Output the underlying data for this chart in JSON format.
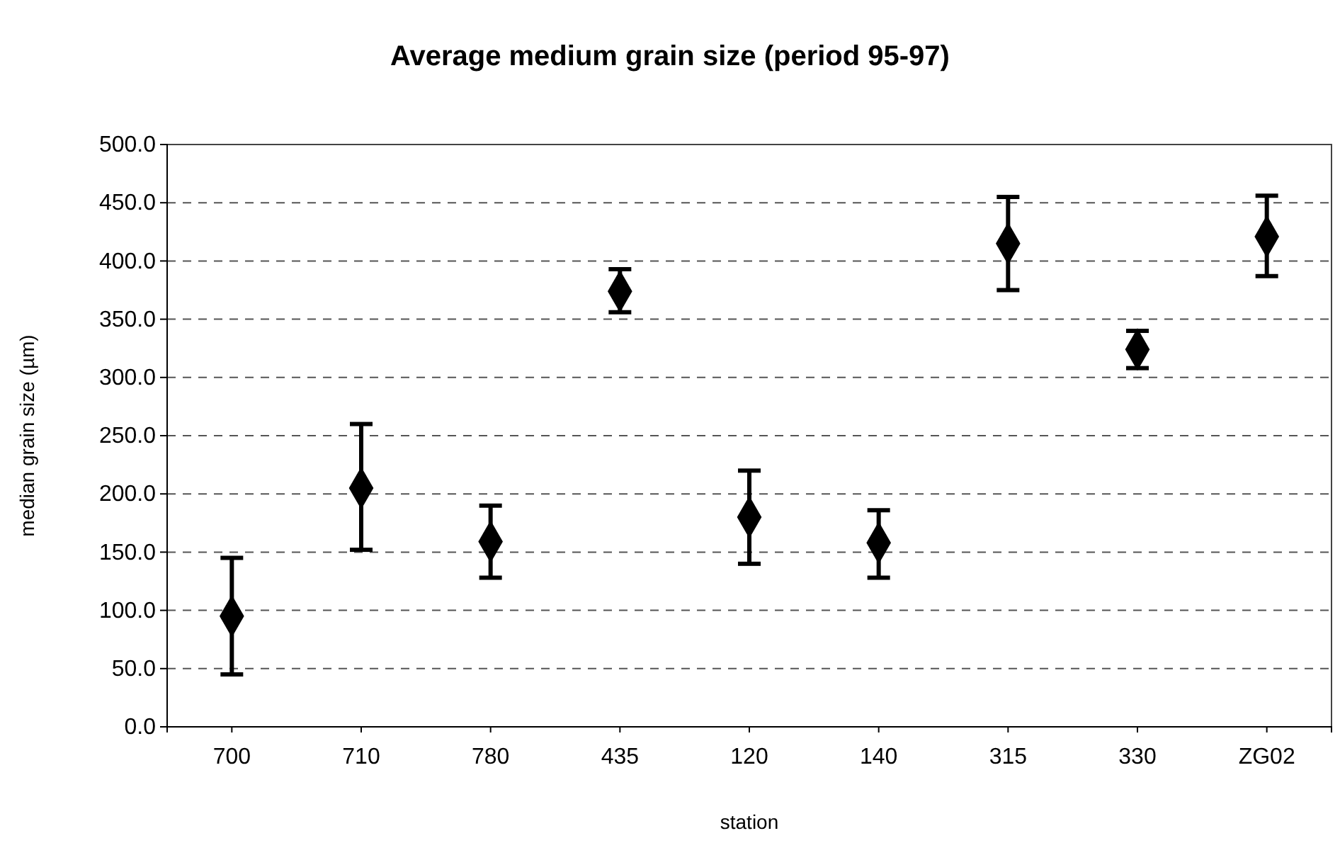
{
  "chart_data": {
    "type": "scatter",
    "title": "Average medium grain size (period 95-97)",
    "xlabel": "station",
    "ylabel": "median grain size (µm)",
    "categories": [
      "700",
      "710",
      "780",
      "435",
      "120",
      "140",
      "315",
      "330",
      "ZG02"
    ],
    "values": [
      95,
      205,
      159,
      374,
      180,
      158,
      415,
      324,
      421
    ],
    "errors": [
      [
        45,
        145
      ],
      [
        152,
        260
      ],
      [
        128,
        190
      ],
      [
        356,
        393
      ],
      [
        140,
        220
      ],
      [
        128,
        186
      ],
      [
        375,
        455
      ],
      [
        308,
        340
      ],
      [
        387,
        456
      ]
    ],
    "color": "#000000",
    "marker": "diamond",
    "ylim": [
      0,
      500
    ],
    "yticks": [
      {
        "value": 0,
        "label": "0.0"
      },
      {
        "value": 50,
        "label": "50.0"
      },
      {
        "value": 100,
        "label": "100.0"
      },
      {
        "value": 150,
        "label": "150.0"
      },
      {
        "value": 200,
        "label": "200.0"
      },
      {
        "value": 250,
        "label": "250.0"
      },
      {
        "value": 300,
        "label": "300.0"
      },
      {
        "value": 350,
        "label": "350.0"
      },
      {
        "value": 400,
        "label": "400.0"
      },
      {
        "value": 450,
        "label": "450.0"
      },
      {
        "value": 500,
        "label": "500.0"
      }
    ],
    "grid": "y"
  }
}
